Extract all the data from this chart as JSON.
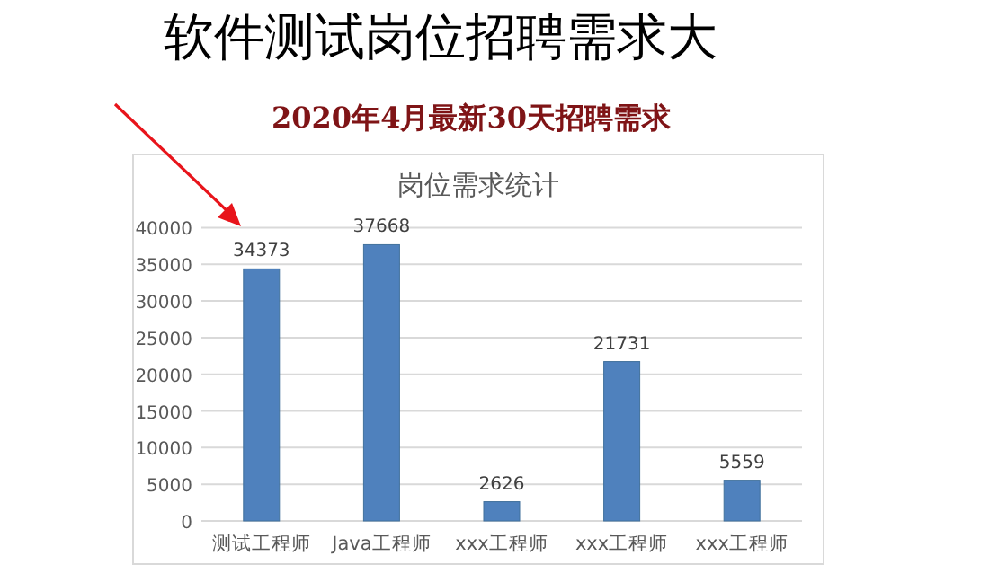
{
  "chart_data": {
    "type": "bar",
    "title": "软件测试岗位招聘需求大",
    "subtitle": "2020年4月最新30天招聘需求",
    "annotations": [
      "岗位需求统计"
    ],
    "categories": [
      "测试工程师",
      "Java工程师",
      "xxx工程师",
      "xxx工程师",
      "xxx工程师"
    ],
    "values": [
      34373,
      37668,
      2626,
      21731,
      5559
    ],
    "color": "#4f81bd",
    "ylim": [
      0,
      40000
    ],
    "yticks": [
      0,
      5000,
      10000,
      15000,
      20000,
      25000,
      30000,
      35000,
      40000
    ],
    "grid": "y",
    "data_labels": true
  }
}
